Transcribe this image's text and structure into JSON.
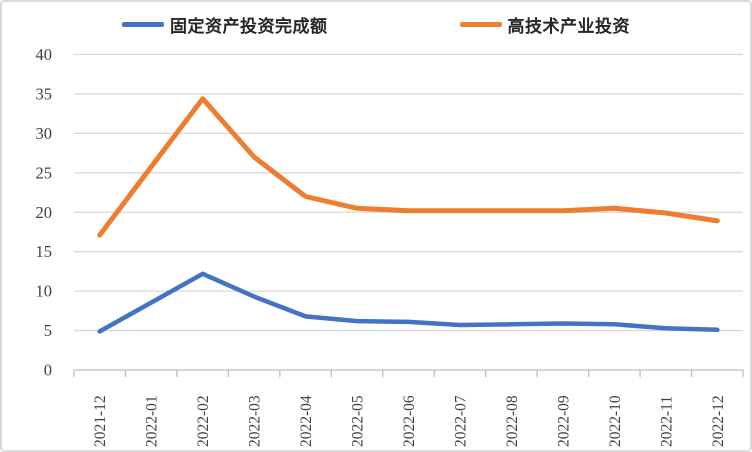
{
  "chart_data": {
    "type": "line",
    "title": "",
    "xlabel": "",
    "ylabel": "",
    "categories": [
      "2021-12",
      "2022-01",
      "2022-02",
      "2022-03",
      "2022-04",
      "2022-05",
      "2022-06",
      "2022-07",
      "2022-08",
      "2022-09",
      "2022-10",
      "2022-11",
      "2022-12"
    ],
    "series": [
      {
        "name": "固定资产投资完成额",
        "color": "#4472C4",
        "line_width": 4.5,
        "values": [
          4.9,
          null,
          12.2,
          9.3,
          6.8,
          6.2,
          6.1,
          5.7,
          5.8,
          5.9,
          5.8,
          5.3,
          5.1
        ]
      },
      {
        "name": "高技术产业投资",
        "color": "#ED7D31",
        "line_width": 5,
        "values": [
          17.1,
          null,
          34.4,
          27.0,
          22.0,
          20.5,
          20.2,
          20.2,
          20.2,
          20.2,
          20.5,
          19.9,
          18.9
        ]
      }
    ],
    "ylim": [
      0,
      40
    ],
    "yticks": [
      0,
      5,
      10,
      15,
      20,
      25,
      30,
      35,
      40
    ],
    "grid": true,
    "legend_position": "top",
    "colors": {
      "gridline": "#D9D9D9",
      "axis_line": "#BFBFBF",
      "tick_mark": "#BFBFBF",
      "tick_text": "#404040"
    }
  }
}
